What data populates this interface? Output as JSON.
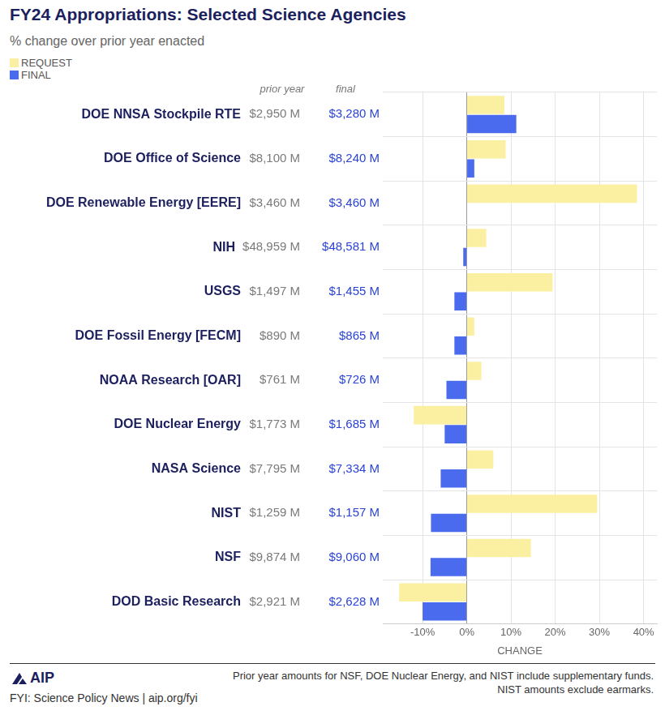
{
  "chart_data": {
    "type": "bar",
    "orientation": "horizontal",
    "title": "FY24 Appropriations: Selected Science Agencies",
    "subtitle": "% change over prior year enacted",
    "x_label": "CHANGE",
    "column_labels": [
      "prior year",
      "final"
    ],
    "categories": [
      "DOE NNSA Stockpile RTE",
      "DOE Office of Science",
      "DOE Renewable Energy [EERE]",
      "NIH",
      "USGS",
      "DOE Fossil Energy [FECM]",
      "NOAA Research [OAR]",
      "DOE Nuclear Energy",
      "NASA Science",
      "NIST",
      "NSF",
      "DOD Basic Research"
    ],
    "prior_year_amounts": [
      "$2,950 M",
      "$8,100 M",
      "$3,460 M",
      "$48,959 M",
      "$1,497 M",
      "$890 M",
      "$761 M",
      "$1,773 M",
      "$7,795 M",
      "$1,259 M",
      "$9,874 M",
      "$2,921 M"
    ],
    "final_amounts": [
      "$3,280 M",
      "$8,240 M",
      "$3,460 M",
      "$48,581 M",
      "$1,455 M",
      "$865 M",
      "$726 M",
      "$1,685 M",
      "$7,334 M",
      "$1,157 M",
      "$9,060 M",
      "$2,628 M"
    ],
    "series": [
      {
        "name": "REQUEST",
        "color": "#fbf0a2",
        "values": [
          8.5,
          8.8,
          38.5,
          4.4,
          19.4,
          1.7,
          3.3,
          -12.0,
          6.0,
          29.5,
          14.5,
          -15.3
        ]
      },
      {
        "name": "FINAL",
        "color": "#4b6bee",
        "values": [
          11.2,
          1.7,
          0,
          -0.8,
          -2.8,
          -2.8,
          -4.6,
          -5.0,
          -5.9,
          -8.1,
          -8.2,
          -10.0
        ]
      }
    ],
    "xlim": [
      -19,
      43
    ],
    "xticks": [
      {
        "value": -10,
        "label": "-10%"
      },
      {
        "value": 0,
        "label": "0%"
      },
      {
        "value": 10,
        "label": "10%"
      },
      {
        "value": 20,
        "label": "20%"
      },
      {
        "value": 30,
        "label": "30%"
      },
      {
        "value": 40,
        "label": "40%"
      }
    ],
    "grid": true,
    "legend": "top-left",
    "tick_labels": "x"
  },
  "footer": {
    "logo": "AIP",
    "source": "FYI: Science Policy News | aip.org/fyi",
    "notes": [
      "Prior year amounts for NSF, DOE Nuclear Energy, and NIST include supplementary funds.",
      "NIST amounts exclude earmarks."
    ]
  }
}
